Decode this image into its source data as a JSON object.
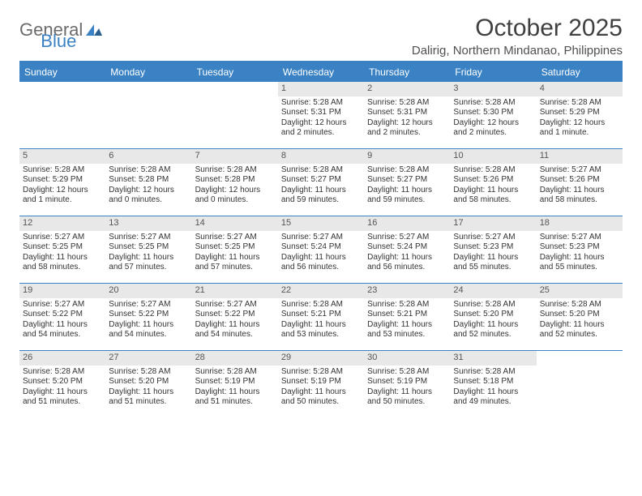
{
  "logo": {
    "text1": "General",
    "text2": "Blue"
  },
  "header": {
    "month_title": "October 2025",
    "location": "Dalirig, Northern Mindanao, Philippines"
  },
  "colors": {
    "accent": "#3b82c4",
    "header_bg": "#3b82c4",
    "date_bg": "#e8e8e8",
    "text": "#333333",
    "logo_grey": "#6b6b6b"
  },
  "day_names": [
    "Sunday",
    "Monday",
    "Tuesday",
    "Wednesday",
    "Thursday",
    "Friday",
    "Saturday"
  ],
  "weeks": [
    [
      {
        "date": "",
        "sunrise": "",
        "sunset": "",
        "daylight": ""
      },
      {
        "date": "",
        "sunrise": "",
        "sunset": "",
        "daylight": ""
      },
      {
        "date": "",
        "sunrise": "",
        "sunset": "",
        "daylight": ""
      },
      {
        "date": "1",
        "sunrise": "Sunrise: 5:28 AM",
        "sunset": "Sunset: 5:31 PM",
        "daylight": "Daylight: 12 hours and 2 minutes."
      },
      {
        "date": "2",
        "sunrise": "Sunrise: 5:28 AM",
        "sunset": "Sunset: 5:31 PM",
        "daylight": "Daylight: 12 hours and 2 minutes."
      },
      {
        "date": "3",
        "sunrise": "Sunrise: 5:28 AM",
        "sunset": "Sunset: 5:30 PM",
        "daylight": "Daylight: 12 hours and 2 minutes."
      },
      {
        "date": "4",
        "sunrise": "Sunrise: 5:28 AM",
        "sunset": "Sunset: 5:29 PM",
        "daylight": "Daylight: 12 hours and 1 minute."
      }
    ],
    [
      {
        "date": "5",
        "sunrise": "Sunrise: 5:28 AM",
        "sunset": "Sunset: 5:29 PM",
        "daylight": "Daylight: 12 hours and 1 minute."
      },
      {
        "date": "6",
        "sunrise": "Sunrise: 5:28 AM",
        "sunset": "Sunset: 5:28 PM",
        "daylight": "Daylight: 12 hours and 0 minutes."
      },
      {
        "date": "7",
        "sunrise": "Sunrise: 5:28 AM",
        "sunset": "Sunset: 5:28 PM",
        "daylight": "Daylight: 12 hours and 0 minutes."
      },
      {
        "date": "8",
        "sunrise": "Sunrise: 5:28 AM",
        "sunset": "Sunset: 5:27 PM",
        "daylight": "Daylight: 11 hours and 59 minutes."
      },
      {
        "date": "9",
        "sunrise": "Sunrise: 5:28 AM",
        "sunset": "Sunset: 5:27 PM",
        "daylight": "Daylight: 11 hours and 59 minutes."
      },
      {
        "date": "10",
        "sunrise": "Sunrise: 5:28 AM",
        "sunset": "Sunset: 5:26 PM",
        "daylight": "Daylight: 11 hours and 58 minutes."
      },
      {
        "date": "11",
        "sunrise": "Sunrise: 5:27 AM",
        "sunset": "Sunset: 5:26 PM",
        "daylight": "Daylight: 11 hours and 58 minutes."
      }
    ],
    [
      {
        "date": "12",
        "sunrise": "Sunrise: 5:27 AM",
        "sunset": "Sunset: 5:25 PM",
        "daylight": "Daylight: 11 hours and 58 minutes."
      },
      {
        "date": "13",
        "sunrise": "Sunrise: 5:27 AM",
        "sunset": "Sunset: 5:25 PM",
        "daylight": "Daylight: 11 hours and 57 minutes."
      },
      {
        "date": "14",
        "sunrise": "Sunrise: 5:27 AM",
        "sunset": "Sunset: 5:25 PM",
        "daylight": "Daylight: 11 hours and 57 minutes."
      },
      {
        "date": "15",
        "sunrise": "Sunrise: 5:27 AM",
        "sunset": "Sunset: 5:24 PM",
        "daylight": "Daylight: 11 hours and 56 minutes."
      },
      {
        "date": "16",
        "sunrise": "Sunrise: 5:27 AM",
        "sunset": "Sunset: 5:24 PM",
        "daylight": "Daylight: 11 hours and 56 minutes."
      },
      {
        "date": "17",
        "sunrise": "Sunrise: 5:27 AM",
        "sunset": "Sunset: 5:23 PM",
        "daylight": "Daylight: 11 hours and 55 minutes."
      },
      {
        "date": "18",
        "sunrise": "Sunrise: 5:27 AM",
        "sunset": "Sunset: 5:23 PM",
        "daylight": "Daylight: 11 hours and 55 minutes."
      }
    ],
    [
      {
        "date": "19",
        "sunrise": "Sunrise: 5:27 AM",
        "sunset": "Sunset: 5:22 PM",
        "daylight": "Daylight: 11 hours and 54 minutes."
      },
      {
        "date": "20",
        "sunrise": "Sunrise: 5:27 AM",
        "sunset": "Sunset: 5:22 PM",
        "daylight": "Daylight: 11 hours and 54 minutes."
      },
      {
        "date": "21",
        "sunrise": "Sunrise: 5:27 AM",
        "sunset": "Sunset: 5:22 PM",
        "daylight": "Daylight: 11 hours and 54 minutes."
      },
      {
        "date": "22",
        "sunrise": "Sunrise: 5:28 AM",
        "sunset": "Sunset: 5:21 PM",
        "daylight": "Daylight: 11 hours and 53 minutes."
      },
      {
        "date": "23",
        "sunrise": "Sunrise: 5:28 AM",
        "sunset": "Sunset: 5:21 PM",
        "daylight": "Daylight: 11 hours and 53 minutes."
      },
      {
        "date": "24",
        "sunrise": "Sunrise: 5:28 AM",
        "sunset": "Sunset: 5:20 PM",
        "daylight": "Daylight: 11 hours and 52 minutes."
      },
      {
        "date": "25",
        "sunrise": "Sunrise: 5:28 AM",
        "sunset": "Sunset: 5:20 PM",
        "daylight": "Daylight: 11 hours and 52 minutes."
      }
    ],
    [
      {
        "date": "26",
        "sunrise": "Sunrise: 5:28 AM",
        "sunset": "Sunset: 5:20 PM",
        "daylight": "Daylight: 11 hours and 51 minutes."
      },
      {
        "date": "27",
        "sunrise": "Sunrise: 5:28 AM",
        "sunset": "Sunset: 5:20 PM",
        "daylight": "Daylight: 11 hours and 51 minutes."
      },
      {
        "date": "28",
        "sunrise": "Sunrise: 5:28 AM",
        "sunset": "Sunset: 5:19 PM",
        "daylight": "Daylight: 11 hours and 51 minutes."
      },
      {
        "date": "29",
        "sunrise": "Sunrise: 5:28 AM",
        "sunset": "Sunset: 5:19 PM",
        "daylight": "Daylight: 11 hours and 50 minutes."
      },
      {
        "date": "30",
        "sunrise": "Sunrise: 5:28 AM",
        "sunset": "Sunset: 5:19 PM",
        "daylight": "Daylight: 11 hours and 50 minutes."
      },
      {
        "date": "31",
        "sunrise": "Sunrise: 5:28 AM",
        "sunset": "Sunset: 5:18 PM",
        "daylight": "Daylight: 11 hours and 49 minutes."
      },
      {
        "date": "",
        "sunrise": "",
        "sunset": "",
        "daylight": ""
      }
    ]
  ]
}
